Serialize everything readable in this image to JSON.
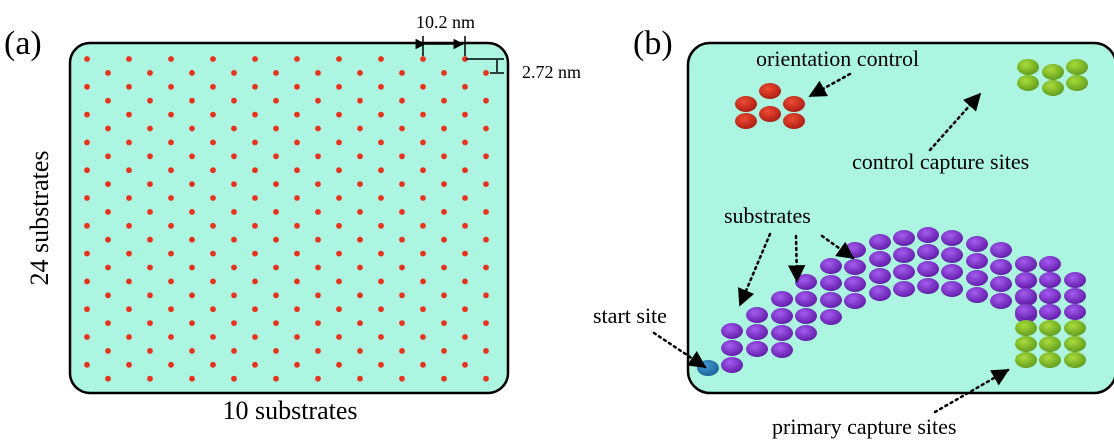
{
  "panel_a": {
    "label": "(a)",
    "dim_horizontal": "10.2 nm",
    "dim_vertical": "2.72 nm",
    "axis_left": "24 substrates",
    "axis_bottom": "10 substrates",
    "grid": {
      "columns": 10,
      "rows": 24,
      "dot_color": "#e8331c"
    }
  },
  "panel_b": {
    "label": "(b)",
    "orientation_control": "orientation control",
    "control_capture_sites": "control capture sites",
    "substrates": "substrates",
    "start_site": "start site",
    "primary_capture_sites": "primary capture sites"
  },
  "colors": {
    "background": "#abf5e1",
    "substrate_dot": "#e8331c",
    "orientation_tile": "#c9271b",
    "capture_tile": "#8bc22e",
    "substrate_tile": "#7a2fc7",
    "start_tile": "#2a7fb8"
  }
}
